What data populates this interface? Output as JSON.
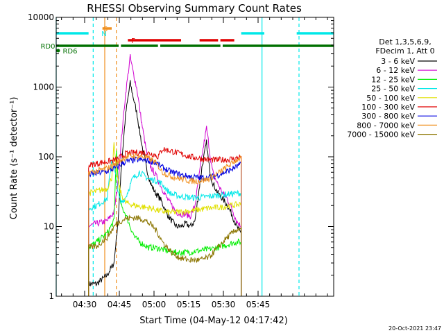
{
  "chart_data": {
    "type": "line",
    "title": "RHESSI Observing Summary Count Rates",
    "xlabel": "Start Time (04-May-12 04:17:42)",
    "ylabel": "Count Rate (s⁻¹ detector⁻¹)",
    "yscale": "log",
    "ylim": [
      1,
      10000
    ],
    "xlim_minutes_after_start": [
      0,
      120
    ],
    "x_ticks": [
      "04:30",
      "04:45",
      "05:00",
      "05:15",
      "05:30",
      "05:45"
    ],
    "x_tick_minutes": [
      12.3,
      27.3,
      42.3,
      57.3,
      72.3,
      87.3
    ],
    "y_ticks": [
      "1",
      "10",
      "100",
      "1000",
      "10000"
    ],
    "y_tick_values": [
      1,
      10,
      100,
      1000,
      10000
    ],
    "legend_header": [
      "Det 1,3,5,6,9,",
      "FDecim 1, Att 0"
    ],
    "legend_position": "right",
    "footer": "20-Oct-2021 23:47",
    "series": [
      {
        "name": "3 - 6 keV",
        "color": "#000000",
        "x": [
          14,
          17,
          17.5,
          22,
          25,
          27,
          28,
          30,
          32,
          33,
          35,
          37,
          39,
          41,
          43,
          45,
          48,
          50,
          52,
          54,
          56,
          58,
          60,
          63,
          65,
          66,
          67,
          68,
          70,
          72,
          74,
          76,
          78,
          80
        ],
        "y": [
          1.5,
          1.5,
          1.5,
          2,
          3,
          15,
          60,
          400,
          1150,
          800,
          400,
          150,
          70,
          40,
          30,
          25,
          15,
          12,
          10,
          10,
          11,
          10,
          12,
          70,
          160,
          80,
          50,
          40,
          30,
          25,
          20,
          15,
          10,
          8
        ]
      },
      {
        "name": "6 - 12 keV",
        "color": "#d000d0",
        "x": [
          14,
          17,
          17.5,
          22,
          25,
          27,
          28,
          30,
          32,
          33,
          35,
          37,
          39,
          41,
          43,
          45,
          48,
          50,
          52,
          54,
          56,
          58,
          60,
          63,
          65,
          66,
          67,
          68,
          70,
          72,
          74,
          76,
          78,
          80
        ],
        "y": [
          10,
          11,
          11,
          12,
          16,
          50,
          150,
          800,
          2700,
          1800,
          900,
          300,
          120,
          70,
          55,
          40,
          25,
          20,
          16,
          15,
          15,
          14,
          20,
          100,
          260,
          150,
          80,
          55,
          40,
          30,
          25,
          18,
          12,
          10
        ]
      },
      {
        "name": "12 - 25 keV",
        "color": "#00ee00",
        "x": [
          14,
          17.5,
          22,
          25,
          26,
          27,
          28,
          30,
          32,
          34,
          36,
          38,
          40,
          42,
          45,
          48,
          50,
          54,
          58,
          62,
          66,
          70,
          74,
          78,
          80
        ],
        "y": [
          5,
          6,
          8,
          12,
          120,
          40,
          20,
          15,
          10,
          7,
          6,
          5.5,
          5,
          5,
          4.8,
          4.5,
          4.3,
          4.2,
          4.3,
          4.5,
          4.7,
          5,
          5.5,
          6,
          6
        ]
      },
      {
        "name": "25 - 50 keV",
        "color": "#00e8e8",
        "x": [
          14,
          17.5,
          22,
          24,
          26,
          27,
          28,
          30,
          33,
          36,
          40,
          44,
          46,
          48,
          50,
          54,
          58,
          62,
          66,
          70,
          74,
          78,
          80
        ],
        "y": [
          18,
          20,
          25,
          90,
          50,
          28,
          22,
          26,
          48,
          60,
          48,
          45,
          40,
          33,
          29,
          27,
          26,
          26,
          27,
          28,
          29,
          30,
          30
        ]
      },
      {
        "name": "50 - 100 keV",
        "color": "#e0e000",
        "x": [
          14,
          17.5,
          22,
          24,
          25,
          26,
          28,
          30,
          34,
          38,
          42,
          44,
          48,
          52,
          56,
          60,
          64,
          68,
          72,
          76,
          80
        ],
        "y": [
          30,
          32,
          35,
          50,
          150,
          60,
          30,
          22,
          20,
          19,
          18,
          17,
          16,
          16,
          16.5,
          17,
          18,
          18.5,
          19,
          20,
          21
        ]
      },
      {
        "name": "100 - 300 keV",
        "color": "#e00000",
        "x": [
          14,
          17.5,
          22,
          26,
          28,
          30,
          34,
          38,
          42,
          44,
          46,
          50,
          54,
          58,
          62,
          66,
          70,
          74,
          78,
          80
        ],
        "y": [
          75,
          80,
          85,
          90,
          100,
          110,
          115,
          115,
          110,
          100,
          130,
          120,
          110,
          100,
          95,
          90,
          90,
          92,
          95,
          100
        ]
      },
      {
        "name": "300 - 800 keV",
        "color": "#0000e0",
        "x": [
          14,
          17.5,
          22,
          26,
          28,
          30,
          34,
          38,
          42,
          44,
          46,
          50,
          54,
          58,
          62,
          66,
          70,
          74,
          78,
          80
        ],
        "y": [
          55,
          58,
          62,
          70,
          78,
          85,
          90,
          90,
          85,
          78,
          70,
          60,
          55,
          52,
          50,
          50,
          55,
          62,
          72,
          78
        ]
      },
      {
        "name": "800 - 7000 keV",
        "color": "#f09020",
        "x": [
          14,
          17.5,
          22,
          26,
          28,
          30,
          34,
          38,
          42,
          44,
          46,
          50,
          54,
          58,
          62,
          66,
          70,
          74,
          78,
          80
        ],
        "y": [
          60,
          62,
          68,
          80,
          90,
          100,
          103,
          100,
          88,
          75,
          60,
          52,
          48,
          45,
          45,
          48,
          58,
          72,
          90,
          98
        ]
      },
      {
        "name": "7000 - 15000 keV",
        "color": "#8b7500",
        "x": [
          14,
          17.5,
          22,
          26,
          28,
          30,
          34,
          38,
          42,
          44,
          46,
          50,
          54,
          58,
          62,
          66,
          70,
          74,
          78,
          80
        ],
        "y": [
          5,
          5.2,
          7,
          11,
          12,
          13,
          13.5,
          12.5,
          10,
          8,
          6,
          4.2,
          3.5,
          3.3,
          3.3,
          3.6,
          5,
          7,
          9,
          9.5
        ]
      }
    ],
    "flags": [
      {
        "label": "N",
        "color": "#00e8e8",
        "segments_minutes": [
          [
            0,
            14
          ],
          [
            80,
            90
          ],
          [
            104,
            120
          ]
        ]
      },
      {
        "label": "S",
        "color": "#f09020",
        "segments_minutes": [
          [
            20,
            24
          ]
        ]
      },
      {
        "label": "F",
        "color": "#e00000",
        "segments_minutes": [
          [
            31,
            54
          ],
          [
            62,
            70
          ],
          [
            71,
            77
          ]
        ]
      },
      {
        "label": "RD0",
        "color": "#007000",
        "segments_minutes": [
          [
            0,
            27
          ],
          [
            28,
            44
          ],
          [
            45,
            71
          ],
          [
            72,
            120
          ]
        ]
      },
      {
        "label": "RD6",
        "color": "#007000",
        "segments_minutes": [
          [
            0,
            0.5
          ]
        ]
      }
    ],
    "vertical_markers": [
      {
        "x_minutes": 0,
        "color": "#00e8e8",
        "style": "solid"
      },
      {
        "x_minutes": 16,
        "color": "#00e8e8",
        "style": "dashed"
      },
      {
        "x_minutes": 21,
        "color": "#f09020",
        "style": "solid"
      },
      {
        "x_minutes": 26,
        "color": "#f09020",
        "style": "dashed"
      },
      {
        "x_minutes": 89,
        "color": "#00e8e8",
        "style": "solid"
      },
      {
        "x_minutes": 105,
        "color": "#00e8e8",
        "style": "dashed"
      }
    ]
  }
}
